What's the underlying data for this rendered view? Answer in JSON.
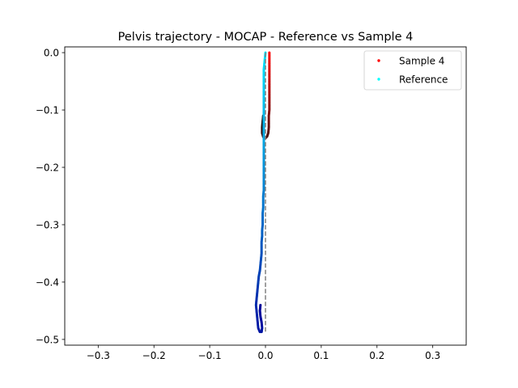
{
  "chart_data": {
    "type": "scatter",
    "title": "Pelvis trajectory - MOCAP - Reference vs Sample 4",
    "xlabel": "",
    "ylabel": "",
    "xlim": [
      -0.36,
      0.36
    ],
    "ylim": [
      -0.51,
      0.01
    ],
    "x_ticks": [
      -0.3,
      -0.2,
      -0.1,
      0.0,
      0.1,
      0.2,
      0.3
    ],
    "x_tick_labels": [
      "−0.3",
      "−0.2",
      "−0.1",
      "0.0",
      "0.1",
      "0.2",
      "0.3"
    ],
    "y_ticks": [
      0.0,
      -0.1,
      -0.2,
      -0.3,
      -0.4,
      -0.5
    ],
    "y_tick_labels": [
      "0.0",
      "−0.1",
      "−0.2",
      "−0.3",
      "−0.4",
      "−0.5"
    ],
    "grid": false,
    "legend_position": "top-right",
    "series": [
      {
        "name": "Sample 4",
        "legend_color": "#ff0000",
        "color_gradient": [
          "#ff0000",
          "#111111"
        ],
        "points": [
          [
            0.007,
            0.0
          ],
          [
            0.007,
            -0.01
          ],
          [
            0.007,
            -0.02
          ],
          [
            0.007,
            -0.03
          ],
          [
            0.007,
            -0.04
          ],
          [
            0.007,
            -0.05
          ],
          [
            0.007,
            -0.06
          ],
          [
            0.007,
            -0.07
          ],
          [
            0.007,
            -0.08
          ],
          [
            0.007,
            -0.09
          ],
          [
            0.007,
            -0.1
          ],
          [
            0.006,
            -0.11
          ],
          [
            0.006,
            -0.12
          ],
          [
            0.006,
            -0.13
          ],
          [
            0.005,
            -0.14
          ],
          [
            0.003,
            -0.146
          ],
          [
            0.0,
            -0.149
          ],
          [
            -0.004,
            -0.147
          ],
          [
            -0.006,
            -0.14
          ],
          [
            -0.006,
            -0.13
          ],
          [
            -0.005,
            -0.12
          ],
          [
            -0.004,
            -0.11
          ]
        ]
      },
      {
        "name": "Reference",
        "legend_color": "#00ffff",
        "color_gradient": [
          "#00e5ff",
          "#000099"
        ],
        "points": [
          [
            0.0,
            0.0
          ],
          [
            -0.001,
            -0.01
          ],
          [
            -0.002,
            -0.02
          ],
          [
            -0.003,
            -0.03
          ],
          [
            -0.003,
            -0.04
          ],
          [
            -0.003,
            -0.05
          ],
          [
            -0.003,
            -0.06
          ],
          [
            -0.003,
            -0.07
          ],
          [
            -0.003,
            -0.08
          ],
          [
            -0.003,
            -0.09
          ],
          [
            -0.003,
            -0.1
          ],
          [
            -0.003,
            -0.11
          ],
          [
            -0.003,
            -0.12
          ],
          [
            -0.003,
            -0.13
          ],
          [
            -0.003,
            -0.14
          ],
          [
            -0.003,
            -0.15
          ],
          [
            -0.003,
            -0.16
          ],
          [
            -0.003,
            -0.17
          ],
          [
            -0.003,
            -0.18
          ],
          [
            -0.003,
            -0.19
          ],
          [
            -0.003,
            -0.2
          ],
          [
            -0.003,
            -0.21
          ],
          [
            -0.003,
            -0.22
          ],
          [
            -0.003,
            -0.23
          ],
          [
            -0.003,
            -0.24
          ],
          [
            -0.004,
            -0.25
          ],
          [
            -0.004,
            -0.26
          ],
          [
            -0.004,
            -0.27
          ],
          [
            -0.005,
            -0.28
          ],
          [
            -0.005,
            -0.29
          ],
          [
            -0.005,
            -0.3
          ],
          [
            -0.006,
            -0.31
          ],
          [
            -0.006,
            -0.32
          ],
          [
            -0.007,
            -0.33
          ],
          [
            -0.007,
            -0.34
          ],
          [
            -0.007,
            -0.35
          ],
          [
            -0.008,
            -0.36
          ],
          [
            -0.009,
            -0.37
          ],
          [
            -0.01,
            -0.38
          ],
          [
            -0.012,
            -0.39
          ],
          [
            -0.013,
            -0.4
          ],
          [
            -0.014,
            -0.41
          ],
          [
            -0.015,
            -0.42
          ],
          [
            -0.016,
            -0.43
          ],
          [
            -0.017,
            -0.44
          ],
          [
            -0.016,
            -0.45
          ],
          [
            -0.015,
            -0.46
          ],
          [
            -0.014,
            -0.47
          ],
          [
            -0.013,
            -0.48
          ],
          [
            -0.01,
            -0.487
          ],
          [
            -0.007,
            -0.487
          ],
          [
            -0.006,
            -0.48
          ],
          [
            -0.007,
            -0.47
          ],
          [
            -0.009,
            -0.46
          ],
          [
            -0.01,
            -0.45
          ],
          [
            -0.009,
            -0.44
          ]
        ]
      },
      {
        "name": "",
        "style": "dashed",
        "color": "#808080",
        "points": [
          [
            0.0,
            0.0
          ],
          [
            0.0,
            -0.49
          ]
        ]
      }
    ]
  }
}
